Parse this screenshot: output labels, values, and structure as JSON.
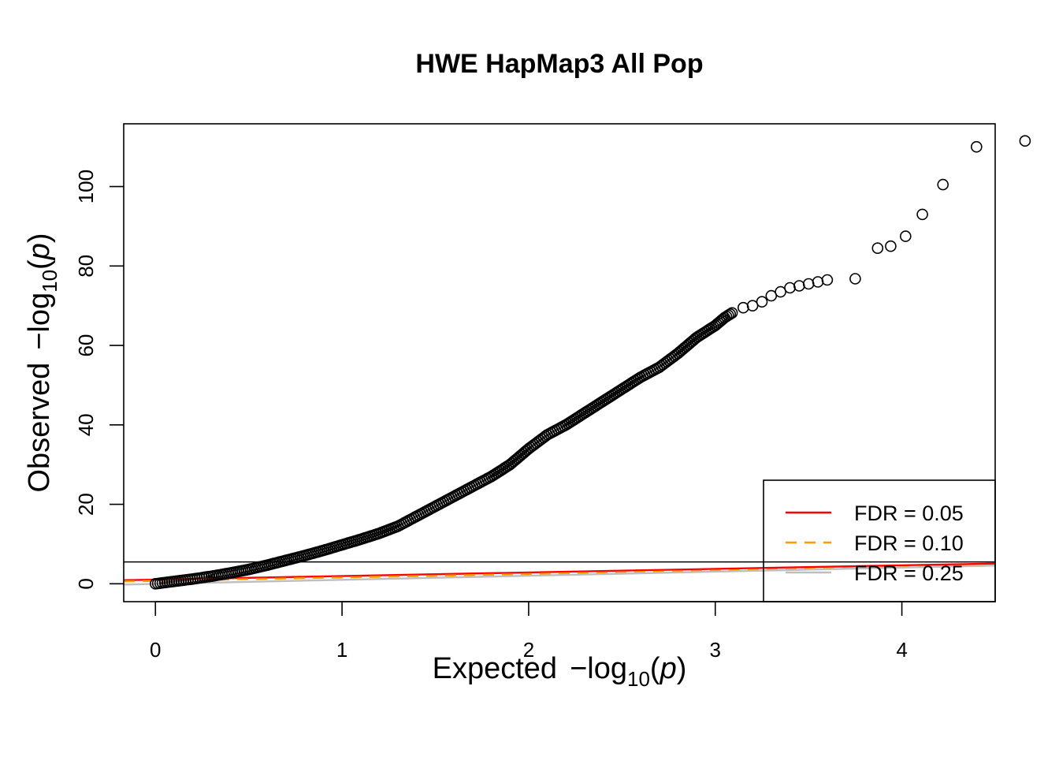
{
  "chart_data": {
    "type": "scatter",
    "title": "HWE HapMap3 All Pop",
    "xlabel": {
      "prefix": "Expected",
      "log": "log",
      "base": "10",
      "var": "p"
    },
    "ylabel": {
      "prefix": "Observed",
      "log": "log",
      "base": "10",
      "var": "p"
    },
    "xlim": [
      -0.17,
      4.5
    ],
    "ylim": [
      -4.5,
      115.8
    ],
    "x_ticks": [
      0,
      1,
      2,
      3,
      4
    ],
    "x_tick_labels": [
      "0",
      "1",
      "2",
      "3",
      "4"
    ],
    "y_ticks": [
      0,
      20,
      40,
      60,
      80,
      100
    ],
    "y_tick_labels": [
      "0",
      "20",
      "40",
      "60",
      "80",
      "100"
    ],
    "grid": false,
    "significance_threshold": 5.5,
    "qq_curve": [
      [
        0,
        0
      ],
      [
        0.1,
        0.6
      ],
      [
        0.2,
        1.2
      ],
      [
        0.3,
        1.9
      ],
      [
        0.4,
        2.7
      ],
      [
        0.5,
        3.6
      ],
      [
        0.6,
        4.7
      ],
      [
        0.7,
        5.9
      ],
      [
        0.8,
        7.1
      ],
      [
        0.9,
        8.4
      ],
      [
        1.0,
        9.8
      ],
      [
        1.1,
        11.2
      ],
      [
        1.2,
        12.7
      ],
      [
        1.3,
        14.5
      ],
      [
        1.4,
        17.0
      ],
      [
        1.5,
        19.5
      ],
      [
        1.6,
        22.0
      ],
      [
        1.7,
        24.5
      ],
      [
        1.8,
        27.0
      ],
      [
        1.9,
        30.0
      ],
      [
        2.0,
        34.0
      ],
      [
        2.1,
        37.5
      ],
      [
        2.2,
        40.0
      ],
      [
        2.3,
        43.0
      ],
      [
        2.4,
        46.0
      ],
      [
        2.5,
        49.0
      ],
      [
        2.6,
        52.0
      ],
      [
        2.7,
        54.5
      ],
      [
        2.8,
        58.0
      ],
      [
        2.9,
        62.0
      ],
      [
        3.0,
        65.0
      ],
      [
        3.05,
        67.0
      ],
      [
        3.1,
        68.5
      ]
    ],
    "tail_points": [
      [
        3.15,
        69.5
      ],
      [
        3.2,
        70.0
      ],
      [
        3.25,
        71.0
      ],
      [
        3.3,
        72.5
      ],
      [
        3.35,
        73.5
      ],
      [
        3.4,
        74.5
      ],
      [
        3.45,
        75.0
      ],
      [
        3.5,
        75.5
      ],
      [
        3.55,
        76.0
      ],
      [
        3.6,
        76.5
      ],
      [
        3.75,
        76.8
      ],
      [
        3.87,
        84.5
      ],
      [
        3.94,
        85.0
      ],
      [
        4.02,
        87.5
      ],
      [
        4.11,
        93.0
      ],
      [
        4.22,
        100.5
      ],
      [
        4.4,
        110.0
      ],
      [
        4.66,
        111.5
      ]
    ],
    "series": [
      {
        "name": "FDR = 0.05",
        "color": "#ff0000",
        "dash": "solid",
        "line": [
          [
            -0.17,
            0.9
          ],
          [
            4.5,
            5.1
          ]
        ]
      },
      {
        "name": "FDR = 0.10",
        "color": "#ff9900",
        "dash": "dashed",
        "line": [
          [
            -0.17,
            0.6
          ],
          [
            4.5,
            4.6
          ]
        ]
      },
      {
        "name": "FDR = 0.25",
        "color": "#bebebe",
        "dash": "solid",
        "line": [
          [
            -0.17,
            -0.2
          ],
          [
            4.5,
            4.6
          ]
        ]
      }
    ],
    "legend_position": "bottom-right"
  }
}
